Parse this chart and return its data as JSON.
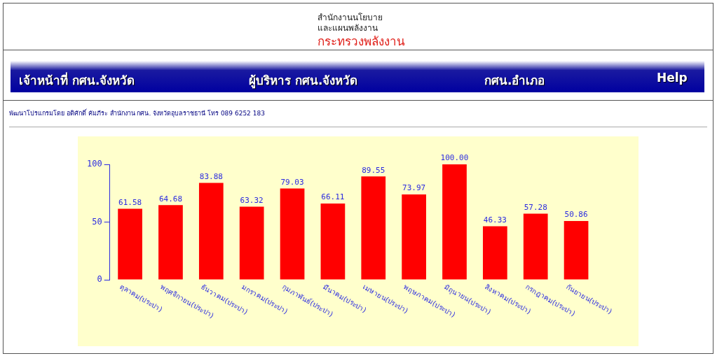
{
  "chart_data": {
    "type": "bar",
    "categories": [
      "ตุลาคม(ประปา)",
      "พฤศจิกายน(ประปา)",
      "ธันวาคม(ประปา)",
      "มกราคม(ประปา)",
      "กุมภาพันธ์(ประปา)",
      "มีนาคม(ประปา)",
      "เมษายน(ประปา)",
      "พฤษภาคม(ประปา)",
      "มิถุนายน(ประปา)",
      "สิงหาคม(ประปา)",
      "กรกฎาคม(ประปา)",
      "กันยายน(ประปา)"
    ],
    "values": [
      61.58,
      64.68,
      83.88,
      63.32,
      79.03,
      66.11,
      89.55,
      73.97,
      100.0,
      46.33,
      57.28,
      50.86
    ],
    "value_labels": [
      "61.58",
      "64.68",
      "83.88",
      "63.32",
      "79.03",
      "66.11",
      "89.55",
      "73.97",
      "100.00",
      "46.33",
      "57.28",
      "50.86"
    ],
    "color": "#ff0000",
    "ylim": [
      0,
      100
    ],
    "yticks": [
      0,
      50,
      100
    ],
    "grid": false,
    "legend": false,
    "annotations": [
      "สำนักงานนโยบาย",
      "และแผนพลังงาน",
      "กระทรวงพลังงาน",
      "เจ้าหน้าที่ กศน.จังหวัด",
      "ผู้บริหาร กศน.จังหวัด",
      "กศน.อำเภอ",
      "Help",
      "พัฒนาโปรแกรมโดย อดิศักดิ์ คัมภีระ สำนักงาน กศน. จังหวัดอุบลราชธานี โทร 089 6252 183"
    ]
  }
}
